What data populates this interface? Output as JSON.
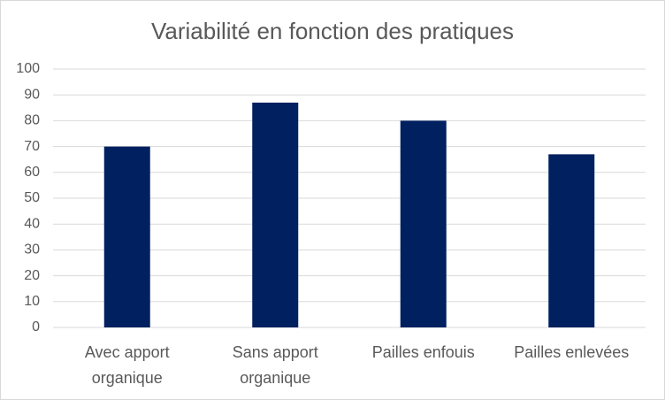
{
  "chart_data": {
    "type": "bar",
    "title": "Variabilité en fonction des pratiques",
    "categories": [
      "Avec apport organique",
      "Sans apport organique",
      "Pailles enfouis",
      "Pailles enlevées"
    ],
    "values": [
      70,
      87,
      80,
      67
    ],
    "color": "#002060",
    "ylim": [
      0,
      100
    ],
    "yticks": [
      0,
      10,
      20,
      30,
      40,
      50,
      60,
      70,
      80,
      90,
      100
    ],
    "grid": true
  }
}
